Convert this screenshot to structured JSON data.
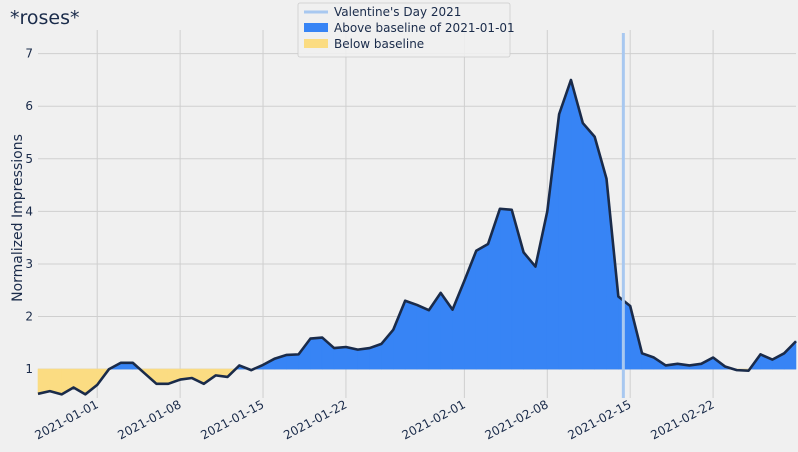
{
  "chart_data": {
    "type": "area",
    "title": "*roses*",
    "xlabel": "",
    "ylabel": "Normalized Impressions",
    "baseline": 1,
    "xlim": [
      "2020-12-27",
      "2021-02-28"
    ],
    "ylim": [
      0.45,
      7.45
    ],
    "grid": true,
    "legend_position": "top-center",
    "x_ticks": [
      "2021-01-01",
      "2021-01-08",
      "2021-01-15",
      "2021-01-22",
      "2021-02-01",
      "2021-02-08",
      "2021-02-15",
      "2021-02-22"
    ],
    "y_ticks": [
      1,
      2,
      3,
      4,
      5,
      6,
      7
    ],
    "reference_line": {
      "label": "Valentine's Day 2021",
      "x": "2021-02-14",
      "color": "#a8c8f0"
    },
    "fills": [
      {
        "label": "Above baseline of 2021-01-01",
        "color": "#3784f5"
      },
      {
        "label": "Below baseline",
        "color": "#fbdc82"
      }
    ],
    "line_color": "#1a2b4a",
    "series": [
      {
        "values": [
          [
            "2020-12-27",
            0.53
          ],
          [
            "2020-12-28",
            0.58
          ],
          [
            "2020-12-29",
            0.52
          ],
          [
            "2020-12-30",
            0.65
          ],
          [
            "2020-12-31",
            0.52
          ],
          [
            "2021-01-01",
            0.7
          ],
          [
            "2021-01-02",
            1.0
          ],
          [
            "2021-01-03",
            1.12
          ],
          [
            "2021-01-04",
            1.12
          ],
          [
            "2021-01-05",
            0.92
          ],
          [
            "2021-01-06",
            0.72
          ],
          [
            "2021-01-07",
            0.72
          ],
          [
            "2021-01-08",
            0.8
          ],
          [
            "2021-01-09",
            0.83
          ],
          [
            "2021-01-10",
            0.72
          ],
          [
            "2021-01-11",
            0.88
          ],
          [
            "2021-01-12",
            0.85
          ],
          [
            "2021-01-13",
            1.07
          ],
          [
            "2021-01-14",
            0.98
          ],
          [
            "2021-01-15",
            1.08
          ],
          [
            "2021-01-16",
            1.2
          ],
          [
            "2021-01-17",
            1.27
          ],
          [
            "2021-01-18",
            1.28
          ],
          [
            "2021-01-19",
            1.58
          ],
          [
            "2021-01-20",
            1.6
          ],
          [
            "2021-01-21",
            1.4
          ],
          [
            "2021-01-22",
            1.42
          ],
          [
            "2021-01-23",
            1.37
          ],
          [
            "2021-01-24",
            1.4
          ],
          [
            "2021-01-25",
            1.48
          ],
          [
            "2021-01-26",
            1.75
          ],
          [
            "2021-01-27",
            2.3
          ],
          [
            "2021-01-28",
            2.22
          ],
          [
            "2021-01-29",
            2.12
          ],
          [
            "2021-01-30",
            2.45
          ],
          [
            "2021-01-31",
            2.13
          ],
          [
            "2021-02-01",
            2.68
          ],
          [
            "2021-02-02",
            3.25
          ],
          [
            "2021-02-03",
            3.38
          ],
          [
            "2021-02-04",
            4.05
          ],
          [
            "2021-02-05",
            4.03
          ],
          [
            "2021-02-06",
            3.22
          ],
          [
            "2021-02-07",
            2.95
          ],
          [
            "2021-02-08",
            4.0
          ],
          [
            "2021-02-09",
            5.85
          ],
          [
            "2021-02-10",
            6.5
          ],
          [
            "2021-02-11",
            5.68
          ],
          [
            "2021-02-12",
            5.42
          ],
          [
            "2021-02-13",
            4.62
          ],
          [
            "2021-02-14",
            2.38
          ],
          [
            "2021-02-15",
            2.2
          ],
          [
            "2021-02-16",
            1.3
          ],
          [
            "2021-02-17",
            1.22
          ],
          [
            "2021-02-18",
            1.07
          ],
          [
            "2021-02-19",
            1.1
          ],
          [
            "2021-02-20",
            1.07
          ],
          [
            "2021-02-21",
            1.1
          ],
          [
            "2021-02-22",
            1.22
          ],
          [
            "2021-02-23",
            1.05
          ],
          [
            "2021-02-24",
            0.98
          ],
          [
            "2021-02-25",
            0.97
          ],
          [
            "2021-02-26",
            1.28
          ],
          [
            "2021-02-27",
            1.18
          ],
          [
            "2021-02-28",
            1.3
          ],
          [
            "2021-03-01",
            1.53
          ]
        ]
      }
    ]
  }
}
